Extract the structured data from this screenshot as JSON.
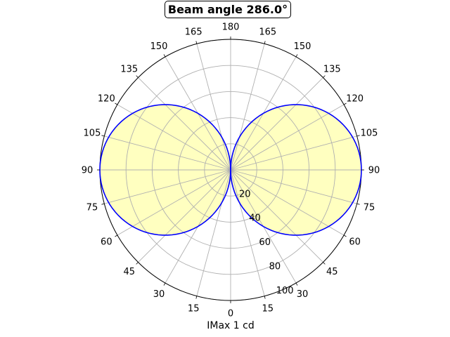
{
  "chart_data": {
    "type": "polar",
    "title": "Beam angle 286.0°",
    "xlabel": "IMax 1 cd",
    "angle_tick_labels": [
      "0",
      "15",
      "30",
      "45",
      "60",
      "75",
      "90",
      "105",
      "120",
      "135",
      "150",
      "165",
      "180",
      "165",
      "150",
      "135",
      "120",
      "105",
      "90",
      "75",
      "60",
      "45",
      "30",
      "15"
    ],
    "radial_tick_labels": [
      "20",
      "40",
      "60",
      "80",
      "100"
    ],
    "radial_ticks": [
      20,
      40,
      60,
      80,
      100
    ],
    "rlim": [
      0,
      100
    ],
    "grid": true,
    "series": [
      {
        "color": "#0000ff",
        "fill": "#ffffc0",
        "curve": "lobes",
        "angles_deg": [
          0,
          15,
          30,
          45,
          60,
          75,
          90,
          105,
          120,
          135,
          150,
          165,
          180
        ],
        "values": [
          0,
          25.9,
          50.0,
          70.7,
          86.6,
          96.6,
          100,
          96.6,
          86.6,
          70.7,
          50.0,
          25.9,
          0
        ]
      }
    ]
  }
}
